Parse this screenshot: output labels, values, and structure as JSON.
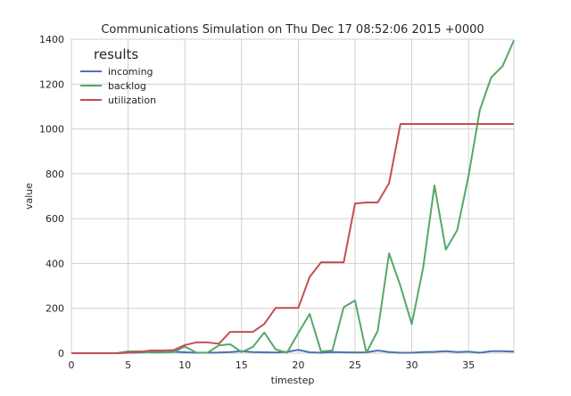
{
  "chart_data": {
    "type": "line",
    "title": "Communications Simulation on Thu Dec 17 08:52:06 2015 +0000",
    "xlabel": "timestep",
    "ylabel": "value",
    "xlim": [
      0,
      39
    ],
    "ylim": [
      0,
      1400
    ],
    "xticks": [
      0,
      5,
      10,
      15,
      20,
      25,
      30,
      35
    ],
    "xtick_labels": [
      "0",
      "5",
      "10",
      "15",
      "20",
      "25",
      "30",
      "35"
    ],
    "yticks": [
      0,
      200,
      400,
      600,
      800,
      1000,
      1200,
      1400
    ],
    "ytick_labels": [
      "0",
      "200",
      "400",
      "600",
      "800",
      "1000",
      "1200",
      "1400"
    ],
    "grid": true,
    "legend": {
      "title": "results",
      "placement": "upper-left"
    },
    "x": [
      0,
      1,
      2,
      3,
      4,
      5,
      6,
      7,
      8,
      9,
      10,
      11,
      12,
      13,
      14,
      15,
      16,
      17,
      18,
      19,
      20,
      21,
      22,
      23,
      24,
      25,
      26,
      27,
      28,
      29,
      30,
      31,
      32,
      33,
      34,
      35,
      36,
      37,
      38,
      39
    ],
    "series": [
      {
        "name": "incoming",
        "color": "#4c72b0",
        "values": [
          0,
          0,
          0,
          0,
          0,
          2,
          3,
          5,
          4,
          7,
          4,
          2,
          2,
          3,
          5,
          9,
          5,
          4,
          3,
          6,
          15,
          4,
          2,
          5,
          4,
          3,
          4,
          12,
          5,
          2,
          2,
          5,
          6,
          9,
          5,
          7,
          2,
          9,
          9,
          7
        ]
      },
      {
        "name": "backlog",
        "color": "#55a868",
        "values": [
          0,
          0,
          0,
          0,
          0,
          8,
          8,
          3,
          3,
          5,
          30,
          3,
          2,
          35,
          40,
          5,
          28,
          92,
          17,
          2,
          90,
          175,
          8,
          12,
          205,
          235,
          2,
          100,
          445,
          300,
          130,
          380,
          748,
          462,
          548,
          790,
          1085,
          1230,
          1280,
          1395
        ]
      },
      {
        "name": "utilization",
        "color": "#c44e52",
        "values": [
          0,
          0,
          0,
          0,
          0,
          3,
          6,
          12,
          12,
          14,
          36,
          48,
          48,
          42,
          95,
          95,
          95,
          130,
          202,
          202,
          202,
          340,
          405,
          405,
          405,
          667,
          672,
          672,
          758,
          1022,
          1022,
          1022,
          1022,
          1022,
          1022,
          1022,
          1022,
          1022,
          1022,
          1022
        ]
      }
    ]
  }
}
